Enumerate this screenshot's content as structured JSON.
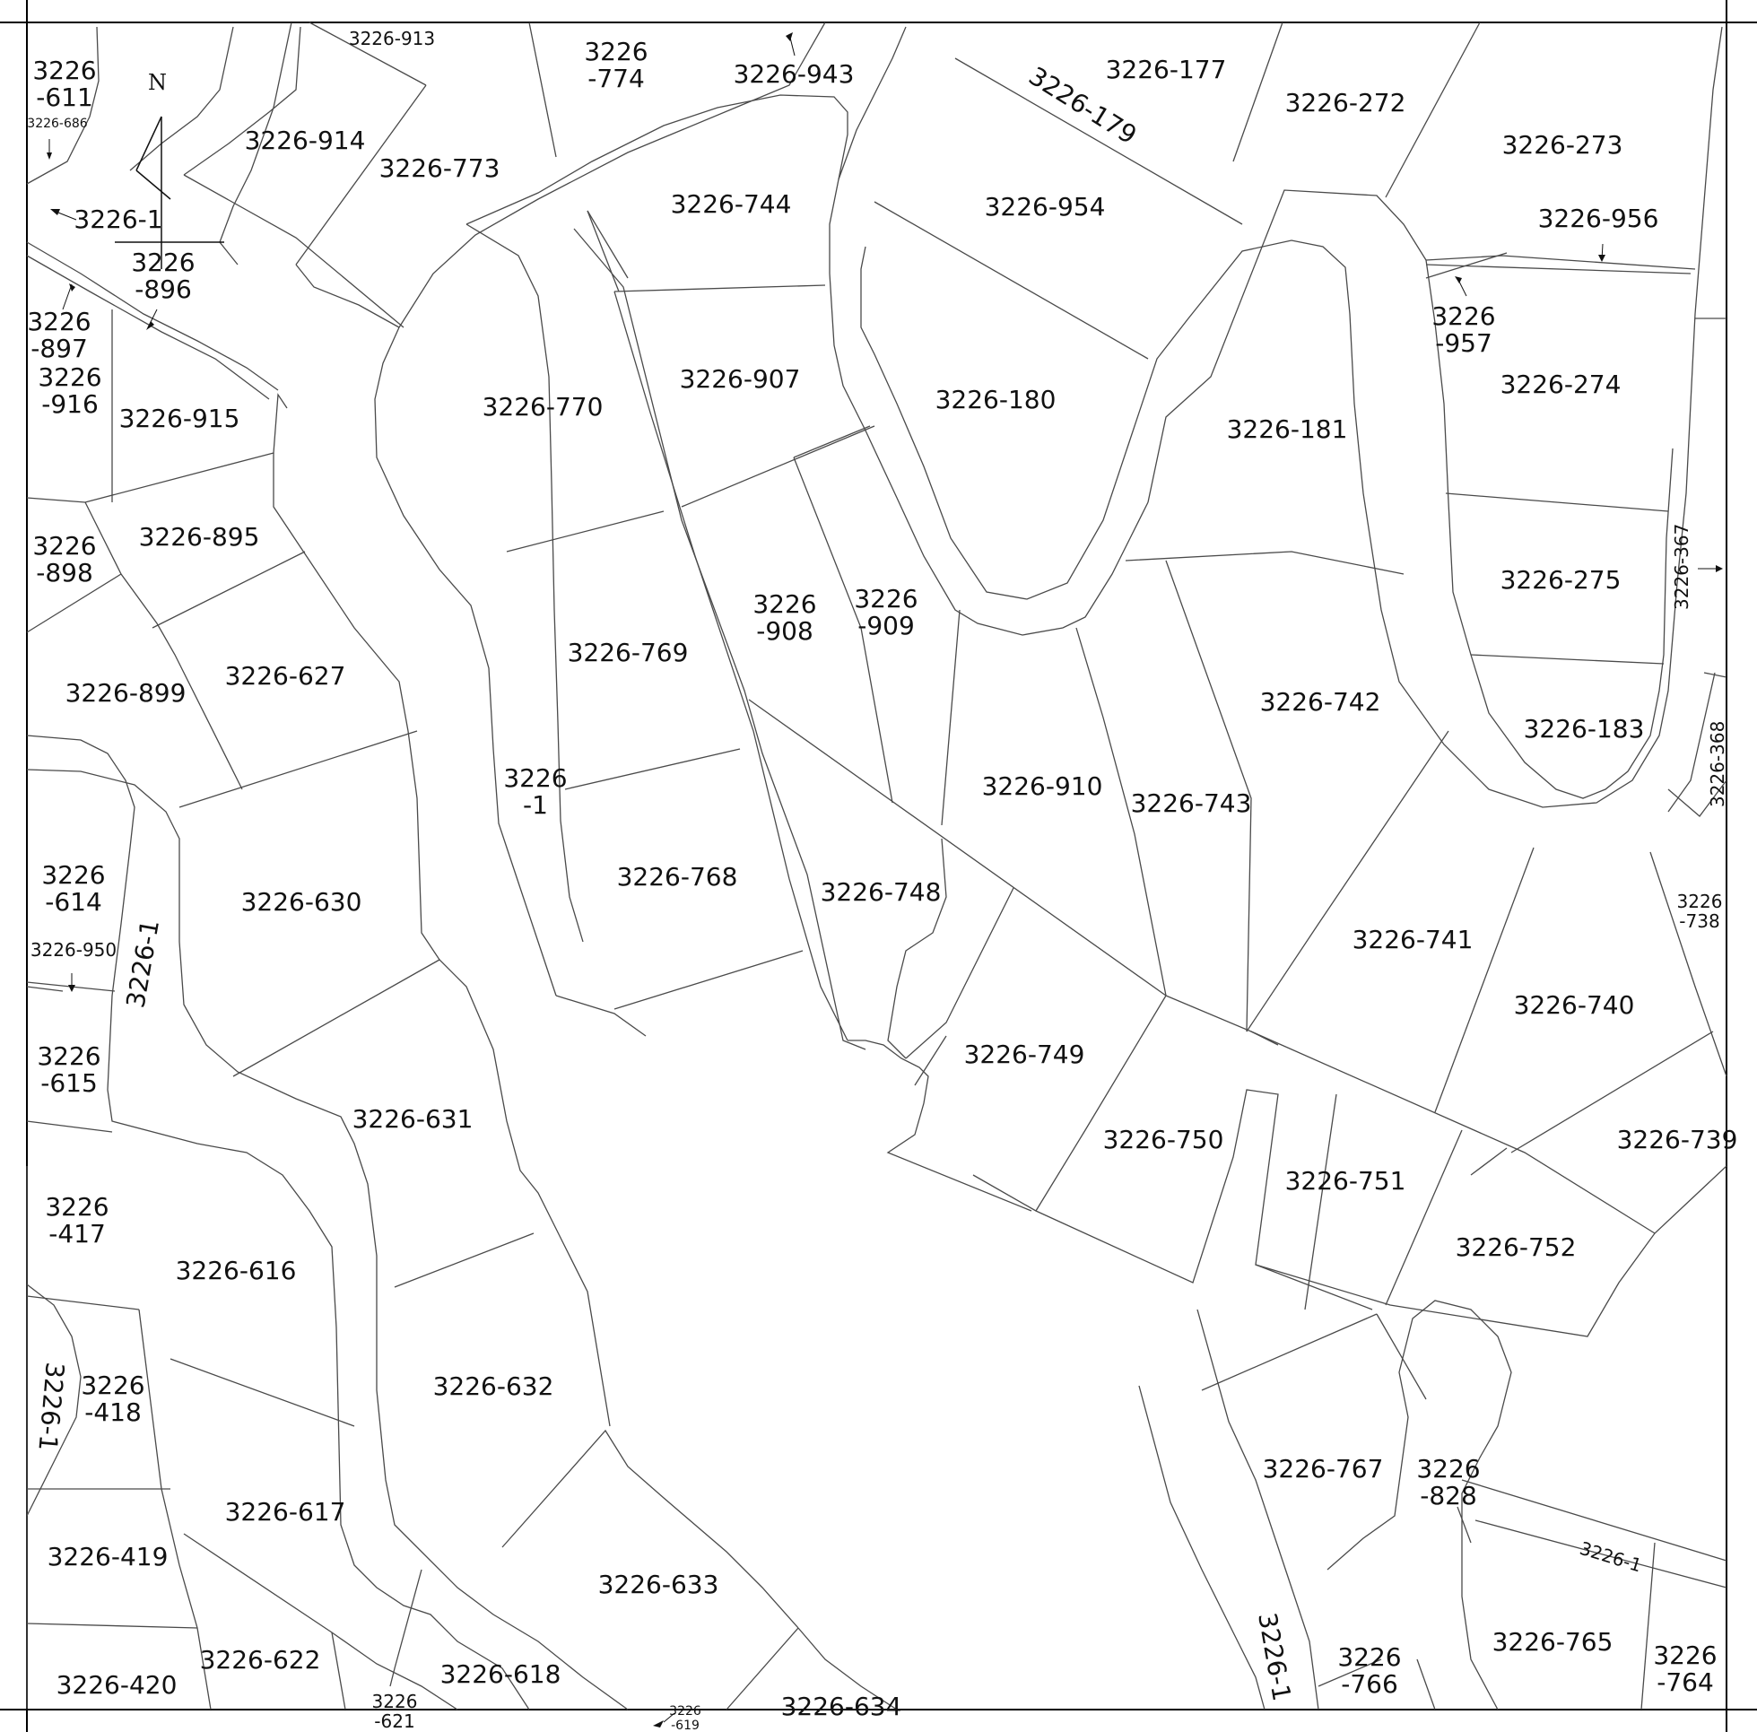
{
  "compass": {
    "north_label": "N"
  },
  "parcels": [
    {
      "id": "p611",
      "lines": [
        "3226",
        "-611"
      ]
    },
    {
      "id": "p686",
      "lines": [
        "3226-686"
      ]
    },
    {
      "id": "p913",
      "lines": [
        "3226-913"
      ]
    },
    {
      "id": "p914",
      "lines": [
        "3226-914"
      ]
    },
    {
      "id": "p773",
      "lines": [
        "3226-773"
      ]
    },
    {
      "id": "p774",
      "lines": [
        "3226",
        "-774"
      ]
    },
    {
      "id": "p943",
      "lines": [
        "3226-943"
      ]
    },
    {
      "id": "p179",
      "lines": [
        "3226-179"
      ]
    },
    {
      "id": "p177",
      "lines": [
        "3226-177"
      ]
    },
    {
      "id": "p272",
      "lines": [
        "3226-272"
      ]
    },
    {
      "id": "p273",
      "lines": [
        "3226-273"
      ]
    },
    {
      "id": "p1a",
      "lines": [
        "3226-1"
      ]
    },
    {
      "id": "p896",
      "lines": [
        "3226",
        "-896"
      ]
    },
    {
      "id": "p744",
      "lines": [
        "3226-744"
      ]
    },
    {
      "id": "p954",
      "lines": [
        "3226-954"
      ]
    },
    {
      "id": "p956",
      "lines": [
        "3226-956"
      ]
    },
    {
      "id": "p957",
      "lines": [
        "3226",
        "-957"
      ]
    },
    {
      "id": "p897",
      "lines": [
        "3226",
        "-897"
      ]
    },
    {
      "id": "p916",
      "lines": [
        "3226",
        "-916"
      ]
    },
    {
      "id": "p915",
      "lines": [
        "3226-915"
      ]
    },
    {
      "id": "p770",
      "lines": [
        "3226-770"
      ]
    },
    {
      "id": "p907",
      "lines": [
        "3226-907"
      ]
    },
    {
      "id": "p180",
      "lines": [
        "3226-180"
      ]
    },
    {
      "id": "p181",
      "lines": [
        "3226-181"
      ]
    },
    {
      "id": "p274",
      "lines": [
        "3226-274"
      ]
    },
    {
      "id": "p898",
      "lines": [
        "3226",
        "-898"
      ]
    },
    {
      "id": "p895",
      "lines": [
        "3226-895"
      ]
    },
    {
      "id": "p908",
      "lines": [
        "3226",
        "-908"
      ]
    },
    {
      "id": "p909",
      "lines": [
        "3226",
        "-909"
      ]
    },
    {
      "id": "p275",
      "lines": [
        "3226-275"
      ]
    },
    {
      "id": "p367",
      "lines": [
        "3226-367"
      ]
    },
    {
      "id": "p769",
      "lines": [
        "3226-769"
      ]
    },
    {
      "id": "p627",
      "lines": [
        "3226-627"
      ]
    },
    {
      "id": "p899",
      "lines": [
        "3226-899"
      ]
    },
    {
      "id": "p742",
      "lines": [
        "3226-742"
      ]
    },
    {
      "id": "p183",
      "lines": [
        "3226-183"
      ]
    },
    {
      "id": "p368",
      "lines": [
        "3226-368"
      ]
    },
    {
      "id": "p1b",
      "lines": [
        "3226",
        "-1"
      ]
    },
    {
      "id": "p910",
      "lines": [
        "3226-910"
      ]
    },
    {
      "id": "p743",
      "lines": [
        "3226-743"
      ]
    },
    {
      "id": "p614",
      "lines": [
        "3226",
        "-614"
      ]
    },
    {
      "id": "p630",
      "lines": [
        "3226-630"
      ]
    },
    {
      "id": "p768",
      "lines": [
        "3226-768"
      ]
    },
    {
      "id": "p748",
      "lines": [
        "3226-748"
      ]
    },
    {
      "id": "p738",
      "lines": [
        "3226",
        "-738"
      ]
    },
    {
      "id": "p950",
      "lines": [
        "3226-950"
      ]
    },
    {
      "id": "p1c",
      "lines": [
        "3226-1"
      ]
    },
    {
      "id": "p741",
      "lines": [
        "3226-741"
      ]
    },
    {
      "id": "p740",
      "lines": [
        "3226-740"
      ]
    },
    {
      "id": "p615",
      "lines": [
        "3226",
        "-615"
      ]
    },
    {
      "id": "p749",
      "lines": [
        "3226-749"
      ]
    },
    {
      "id": "p631",
      "lines": [
        "3226-631"
      ]
    },
    {
      "id": "p750",
      "lines": [
        "3226-750"
      ]
    },
    {
      "id": "p739",
      "lines": [
        "3226-739"
      ]
    },
    {
      "id": "p751",
      "lines": [
        "3226-751"
      ]
    },
    {
      "id": "p417",
      "lines": [
        "3226",
        "-417"
      ]
    },
    {
      "id": "p752",
      "lines": [
        "3226-752"
      ]
    },
    {
      "id": "p616",
      "lines": [
        "3226-616"
      ]
    },
    {
      "id": "p418",
      "lines": [
        "3226",
        "-418"
      ]
    },
    {
      "id": "p1d",
      "lines": [
        "3226-1"
      ]
    },
    {
      "id": "p632",
      "lines": [
        "3226-632"
      ]
    },
    {
      "id": "p767",
      "lines": [
        "3226-767"
      ]
    },
    {
      "id": "p828",
      "lines": [
        "3226",
        "-828"
      ]
    },
    {
      "id": "p617",
      "lines": [
        "3226-617"
      ]
    },
    {
      "id": "p419",
      "lines": [
        "3226-419"
      ]
    },
    {
      "id": "p1e",
      "lines": [
        "3226-1"
      ]
    },
    {
      "id": "p633",
      "lines": [
        "3226-633"
      ]
    },
    {
      "id": "p765",
      "lines": [
        "3226-765"
      ]
    },
    {
      "id": "p1f",
      "lines": [
        "3226-1"
      ]
    },
    {
      "id": "p766",
      "lines": [
        "3226",
        "-766"
      ]
    },
    {
      "id": "p764",
      "lines": [
        "3226",
        "-764"
      ]
    },
    {
      "id": "p622",
      "lines": [
        "3226-622"
      ]
    },
    {
      "id": "p618",
      "lines": [
        "3226-618"
      ]
    },
    {
      "id": "p420",
      "lines": [
        "3226-420"
      ]
    },
    {
      "id": "p634",
      "lines": [
        "3226-634"
      ]
    },
    {
      "id": "p621",
      "lines": [
        "3226",
        "-621"
      ]
    },
    {
      "id": "p619",
      "lines": [
        "3226",
        "-619"
      ]
    }
  ]
}
